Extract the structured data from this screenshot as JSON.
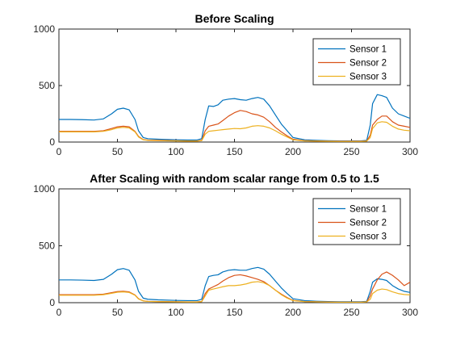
{
  "chart_data": [
    {
      "type": "line",
      "title": "Before Scaling",
      "xlabel": "",
      "ylabel": "",
      "xlim": [
        0,
        300
      ],
      "ylim": [
        0,
        1000
      ],
      "xticks": [
        0,
        50,
        100,
        150,
        200,
        250,
        300
      ],
      "yticks": [
        0,
        500,
        1000
      ],
      "grid": false,
      "legend": "top-right",
      "series": [
        {
          "name": "Sensor 1",
          "color": "#0072BD",
          "x": [
            0,
            10,
            20,
            30,
            38,
            45,
            50,
            55,
            60,
            65,
            68,
            72,
            76,
            85,
            100,
            110,
            118,
            122,
            125,
            128,
            132,
            136,
            140,
            145,
            150,
            155,
            160,
            165,
            170,
            175,
            180,
            185,
            190,
            195,
            200,
            210,
            220,
            230,
            240,
            250,
            258,
            263,
            266,
            268,
            272,
            276,
            280,
            285,
            290,
            295,
            300
          ],
          "y": [
            200,
            200,
            198,
            195,
            205,
            250,
            290,
            300,
            285,
            200,
            100,
            40,
            30,
            25,
            20,
            18,
            18,
            30,
            200,
            320,
            315,
            330,
            370,
            380,
            385,
            375,
            370,
            385,
            395,
            380,
            320,
            240,
            160,
            100,
            40,
            20,
            15,
            12,
            10,
            10,
            10,
            15,
            150,
            340,
            420,
            410,
            395,
            300,
            250,
            230,
            210
          ]
        },
        {
          "name": "Sensor 2",
          "color": "#D95319",
          "x": [
            0,
            10,
            20,
            30,
            38,
            45,
            50,
            55,
            60,
            65,
            68,
            72,
            76,
            85,
            100,
            110,
            118,
            122,
            125,
            128,
            132,
            136,
            140,
            145,
            150,
            155,
            160,
            165,
            170,
            175,
            180,
            185,
            190,
            195,
            200,
            210,
            220,
            230,
            240,
            250,
            258,
            263,
            266,
            268,
            272,
            276,
            280,
            285,
            290,
            295,
            300
          ],
          "y": [
            95,
            95,
            95,
            95,
            100,
            120,
            135,
            140,
            135,
            95,
            50,
            22,
            18,
            15,
            12,
            10,
            10,
            15,
            100,
            140,
            150,
            160,
            190,
            230,
            260,
            280,
            270,
            250,
            240,
            220,
            180,
            130,
            90,
            55,
            25,
            12,
            10,
            8,
            7,
            7,
            7,
            10,
            60,
            150,
            200,
            230,
            230,
            180,
            150,
            140,
            130
          ]
        },
        {
          "name": "Sensor 3",
          "color": "#EDB120",
          "x": [
            0,
            10,
            20,
            30,
            38,
            45,
            50,
            55,
            60,
            65,
            68,
            72,
            76,
            85,
            100,
            110,
            118,
            122,
            125,
            128,
            132,
            136,
            140,
            145,
            150,
            155,
            160,
            165,
            170,
            175,
            180,
            185,
            190,
            195,
            200,
            210,
            220,
            230,
            240,
            250,
            258,
            263,
            266,
            268,
            272,
            276,
            280,
            285,
            290,
            295,
            300
          ],
          "y": [
            90,
            90,
            90,
            90,
            95,
            110,
            125,
            130,
            125,
            90,
            45,
            20,
            15,
            12,
            10,
            8,
            8,
            12,
            70,
            95,
            100,
            105,
            110,
            115,
            120,
            118,
            125,
            140,
            145,
            140,
            125,
            100,
            70,
            45,
            20,
            10,
            8,
            6,
            5,
            5,
            5,
            8,
            40,
            120,
            170,
            180,
            175,
            140,
            115,
            105,
            100
          ]
        }
      ]
    },
    {
      "type": "line",
      "title": "After Scaling with random scalar range from 0.5 to 1.5",
      "xlabel": "",
      "ylabel": "",
      "xlim": [
        0,
        300
      ],
      "ylim": [
        0,
        1000
      ],
      "xticks": [
        0,
        50,
        100,
        150,
        200,
        250,
        300
      ],
      "yticks": [
        0,
        500,
        1000
      ],
      "grid": false,
      "legend": "top-right",
      "series": [
        {
          "name": "Sensor 1",
          "color": "#0072BD",
          "x": [
            0,
            10,
            20,
            30,
            38,
            45,
            50,
            55,
            60,
            65,
            68,
            72,
            76,
            85,
            100,
            110,
            118,
            122,
            125,
            128,
            132,
            136,
            140,
            145,
            150,
            155,
            160,
            165,
            170,
            175,
            180,
            185,
            190,
            195,
            200,
            210,
            220,
            230,
            240,
            250,
            258,
            263,
            266,
            268,
            272,
            276,
            280,
            285,
            290,
            295,
            300
          ],
          "y": [
            200,
            200,
            198,
            195,
            205,
            250,
            290,
            300,
            285,
            200,
            100,
            40,
            30,
            25,
            20,
            18,
            18,
            30,
            150,
            230,
            240,
            245,
            270,
            285,
            290,
            285,
            285,
            300,
            310,
            295,
            250,
            190,
            130,
            80,
            35,
            18,
            13,
            10,
            8,
            8,
            8,
            12,
            100,
            180,
            210,
            205,
            195,
            150,
            120,
            100,
            90
          ]
        },
        {
          "name": "Sensor 2",
          "color": "#D95319",
          "x": [
            0,
            10,
            20,
            30,
            38,
            45,
            50,
            55,
            60,
            65,
            68,
            72,
            76,
            85,
            100,
            110,
            118,
            122,
            125,
            128,
            132,
            136,
            140,
            145,
            150,
            155,
            160,
            165,
            170,
            175,
            180,
            185,
            190,
            195,
            200,
            210,
            220,
            230,
            240,
            250,
            258,
            263,
            266,
            268,
            272,
            276,
            280,
            285,
            290,
            295,
            300
          ],
          "y": [
            70,
            70,
            70,
            70,
            75,
            88,
            98,
            100,
            95,
            68,
            35,
            16,
            12,
            10,
            8,
            7,
            7,
            10,
            80,
            120,
            140,
            160,
            190,
            220,
            240,
            245,
            235,
            220,
            205,
            185,
            150,
            110,
            75,
            45,
            20,
            10,
            8,
            6,
            5,
            5,
            5,
            8,
            60,
            120,
            200,
            250,
            270,
            240,
            200,
            150,
            180
          ]
        },
        {
          "name": "Sensor 3",
          "color": "#EDB120",
          "x": [
            0,
            10,
            20,
            30,
            38,
            45,
            50,
            55,
            60,
            65,
            68,
            72,
            76,
            85,
            100,
            110,
            118,
            122,
            125,
            128,
            132,
            136,
            140,
            145,
            150,
            155,
            160,
            165,
            170,
            175,
            180,
            185,
            190,
            195,
            200,
            210,
            220,
            230,
            240,
            250,
            258,
            263,
            266,
            268,
            272,
            276,
            280,
            285,
            290,
            295,
            300
          ],
          "y": [
            65,
            65,
            65,
            65,
            70,
            82,
            92,
            95,
            90,
            65,
            32,
            15,
            11,
            9,
            7,
            6,
            6,
            9,
            60,
            110,
            120,
            130,
            140,
            150,
            150,
            155,
            165,
            180,
            185,
            175,
            150,
            110,
            70,
            40,
            18,
            9,
            7,
            5,
            4,
            4,
            4,
            7,
            30,
            80,
            110,
            120,
            115,
            95,
            80,
            72,
            68
          ]
        }
      ]
    }
  ]
}
